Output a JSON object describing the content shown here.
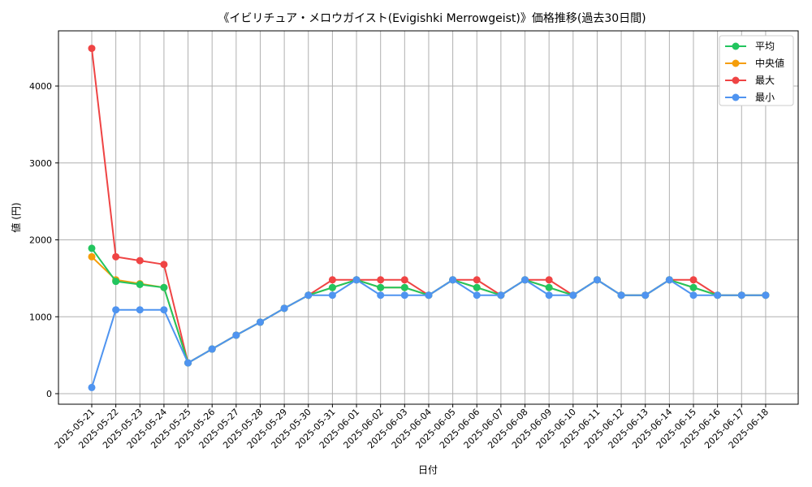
{
  "chart_data": {
    "type": "line",
    "title": "《イビリチュア・メロウガイスト(Evigishki Merrowgeist)》価格推移(過去30日間)",
    "xlabel": "日付",
    "ylabel": "値 (円)",
    "ylim": [
      0,
      4700
    ],
    "yticks": [
      0,
      1000,
      2000,
      3000,
      4000
    ],
    "grid": true,
    "legend_position": "top-right",
    "categories": [
      "2025-05-21",
      "2025-05-22",
      "2025-05-23",
      "2025-05-24",
      "2025-05-25",
      "2025-05-26",
      "2025-05-27",
      "2025-05-28",
      "2025-05-29",
      "2025-05-30",
      "2025-05-31",
      "2025-06-01",
      "2025-06-02",
      "2025-06-03",
      "2025-06-04",
      "2025-06-05",
      "2025-06-06",
      "2025-06-07",
      "2025-06-08",
      "2025-06-09",
      "2025-06-10",
      "2025-06-11",
      "2025-06-12",
      "2025-06-13",
      "2025-06-14",
      "2025-06-15",
      "2025-06-16",
      "2025-06-17",
      "2025-06-18"
    ],
    "series": [
      {
        "key": "max",
        "name": "最大",
        "color": "#ef4444",
        "values": [
          4490,
          1780,
          1730,
          1680,
          400,
          580,
          760,
          930,
          1110,
          1280,
          1480,
          1480,
          1480,
          1480,
          1280,
          1480,
          1480,
          1280,
          1480,
          1480,
          1280,
          1480,
          1280,
          1280,
          1480,
          1480,
          1280,
          1280,
          1280
        ]
      },
      {
        "key": "median",
        "name": "中央値",
        "color": "#f59e0b",
        "values": [
          1780,
          1480,
          1430,
          1380,
          400,
          580,
          760,
          930,
          1110,
          1280,
          1380,
          1480,
          1380,
          1380,
          1280,
          1480,
          1380,
          1280,
          1480,
          1380,
          1280,
          1480,
          1280,
          1280,
          1480,
          1380,
          1280,
          1280,
          1280
        ]
      },
      {
        "key": "avg",
        "name": "平均",
        "color": "#22c55e",
        "values": [
          1890,
          1460,
          1420,
          1380,
          400,
          580,
          760,
          930,
          1110,
          1280,
          1380,
          1480,
          1380,
          1380,
          1280,
          1480,
          1380,
          1280,
          1480,
          1380,
          1280,
          1480,
          1280,
          1280,
          1480,
          1380,
          1280,
          1280,
          1280
        ]
      },
      {
        "key": "min",
        "name": "最小",
        "color": "#4f94f0",
        "values": [
          80,
          1090,
          1090,
          1090,
          400,
          580,
          760,
          930,
          1110,
          1280,
          1280,
          1480,
          1280,
          1280,
          1280,
          1480,
          1280,
          1280,
          1480,
          1280,
          1280,
          1480,
          1280,
          1280,
          1480,
          1280,
          1280,
          1280,
          1280
        ]
      }
    ],
    "legend_order": [
      "avg",
      "median",
      "max",
      "min"
    ]
  }
}
